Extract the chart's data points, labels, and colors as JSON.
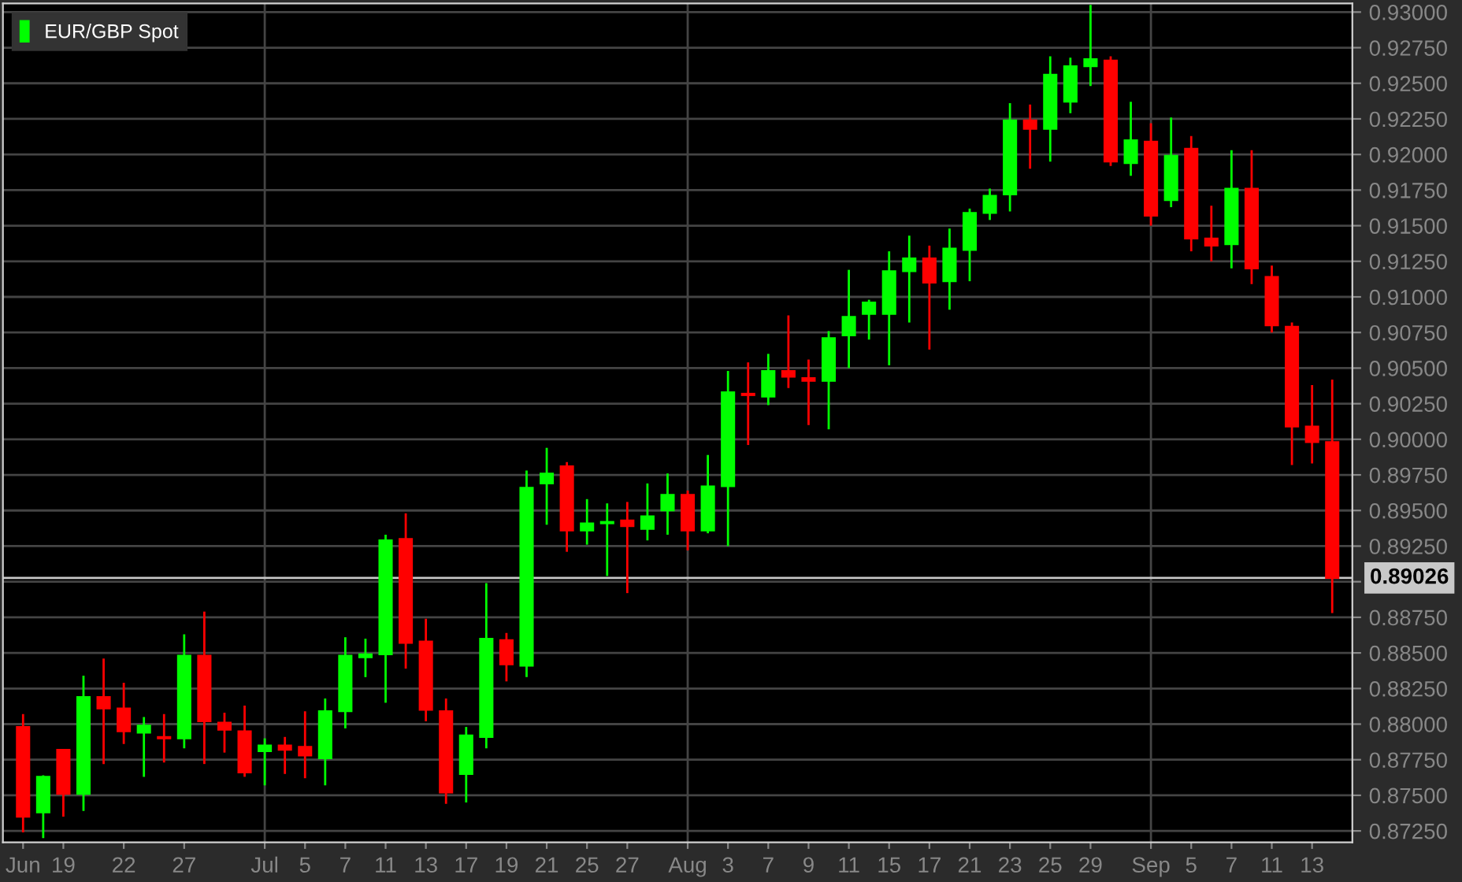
{
  "chart_data": {
    "type": "candlestick",
    "categories": [
      "Jun",
      null,
      "19",
      null,
      null,
      "22",
      null,
      null,
      "27",
      null,
      null,
      null,
      "Jul",
      null,
      "5",
      null,
      "7",
      null,
      "11",
      null,
      "13",
      null,
      "17",
      null,
      "19",
      null,
      "21",
      null,
      "25",
      null,
      "27",
      null,
      null,
      "Aug",
      null,
      "3",
      null,
      "7",
      null,
      "9",
      null,
      "11",
      null,
      "15",
      null,
      "17",
      null,
      "21",
      null,
      "23",
      null,
      "25",
      null,
      "29",
      null,
      null,
      "Sep",
      null,
      "5",
      null,
      "7",
      null,
      "11",
      null,
      "13",
      null
    ],
    "series": [
      {
        "name": "EUR/GBP Spot",
        "color": "#00ff00",
        "colors": [
          "#ff0000",
          "#00ff00",
          "#ff0000",
          "#00ff00",
          "#ff0000",
          "#ff0000",
          "#00ff00",
          "#ff0000",
          "#00ff00",
          "#ff0000",
          "#ff0000",
          "#ff0000",
          "#00ff00",
          "#ff0000",
          "#ff0000",
          "#00ff00",
          "#00ff00",
          "#00ff00",
          "#00ff00",
          "#ff0000",
          "#ff0000",
          "#ff0000",
          "#00ff00",
          "#00ff00",
          "#ff0000",
          "#00ff00",
          "#00ff00",
          "#ff0000",
          "#00ff00",
          "#00ff00",
          "#ff0000",
          "#00ff00",
          "#00ff00",
          "#ff0000",
          "#00ff00",
          "#00ff00",
          "#ff0000",
          "#00ff00",
          "#ff0000",
          "#ff0000",
          "#00ff00",
          "#00ff00",
          "#00ff00",
          "#00ff00",
          "#00ff00",
          "#ff0000",
          "#00ff00",
          "#00ff00",
          "#00ff00",
          "#00ff00",
          "#ff0000",
          "#00ff00",
          "#00ff00",
          "#00ff00",
          "#ff0000",
          "#00ff00",
          "#ff0000",
          "#00ff00",
          "#ff0000",
          "#ff0000",
          "#00ff00",
          "#ff0000",
          "#ff0000",
          "#ff0000",
          "#ff0000",
          "#ff0000"
        ],
        "ohlc": [
          [
            0.8798,
            0.8807,
            0.8724,
            0.8735
          ],
          [
            0.8738,
            0.8764,
            0.872,
            0.8763
          ],
          [
            0.8782,
            0.8782,
            0.8735,
            0.8751
          ],
          [
            0.8751,
            0.8834,
            0.8739,
            0.8819
          ],
          [
            0.8819,
            0.8846,
            0.8772,
            0.8811
          ],
          [
            0.8811,
            0.8829,
            0.8786,
            0.8795
          ],
          [
            0.8794,
            0.8805,
            0.8763,
            0.8799
          ],
          [
            0.8791,
            0.8807,
            0.8773,
            0.879
          ],
          [
            0.879,
            0.8863,
            0.8783,
            0.8848
          ],
          [
            0.8848,
            0.8879,
            0.8772,
            0.8802
          ],
          [
            0.8801,
            0.8808,
            0.878,
            0.8796
          ],
          [
            0.8795,
            0.8813,
            0.8763,
            0.8766
          ],
          [
            0.8781,
            0.879,
            0.8757,
            0.8785
          ],
          [
            0.8785,
            0.8791,
            0.8765,
            0.8782
          ],
          [
            0.8784,
            0.8809,
            0.8762,
            0.8778
          ],
          [
            0.8776,
            0.8818,
            0.8757,
            0.8809
          ],
          [
            0.8809,
            0.8861,
            0.8797,
            0.8848
          ],
          [
            0.8847,
            0.886,
            0.8833,
            0.8849
          ],
          [
            0.8849,
            0.8933,
            0.8815,
            0.8929
          ],
          [
            0.893,
            0.8948,
            0.8839,
            0.8857
          ],
          [
            0.8858,
            0.8874,
            0.8802,
            0.881
          ],
          [
            0.8809,
            0.8818,
            0.8744,
            0.8752
          ],
          [
            0.8765,
            0.8798,
            0.8745,
            0.8792
          ],
          [
            0.8791,
            0.8899,
            0.8783,
            0.886
          ],
          [
            0.8859,
            0.8864,
            0.883,
            0.8842
          ],
          [
            0.8841,
            0.8978,
            0.8833,
            0.8966
          ],
          [
            0.8969,
            0.8994,
            0.894,
            0.8976
          ],
          [
            0.8981,
            0.8984,
            0.8921,
            0.8936
          ],
          [
            0.8936,
            0.8958,
            0.8926,
            0.8941
          ],
          [
            0.8941,
            0.8955,
            0.8904,
            0.8942
          ],
          [
            0.8943,
            0.8956,
            0.8892,
            0.8939
          ],
          [
            0.8937,
            0.8969,
            0.8929,
            0.8946
          ],
          [
            0.895,
            0.8976,
            0.8933,
            0.8961
          ],
          [
            0.8961,
            0.8964,
            0.8922,
            0.8936
          ],
          [
            0.8936,
            0.8989,
            0.8934,
            0.8967
          ],
          [
            0.8967,
            0.9048,
            0.8925,
            0.9033
          ],
          [
            0.9032,
            0.9054,
            0.8996,
            0.9031
          ],
          [
            0.903,
            0.906,
            0.9024,
            0.9048
          ],
          [
            0.9048,
            0.9087,
            0.9036,
            0.9044
          ],
          [
            0.9043,
            0.9056,
            0.901,
            0.9041
          ],
          [
            0.9041,
            0.9076,
            0.9007,
            0.9071
          ],
          [
            0.9073,
            0.9119,
            0.905,
            0.9086
          ],
          [
            0.9088,
            0.9098,
            0.907,
            0.9096
          ],
          [
            0.9088,
            0.9132,
            0.9052,
            0.9118
          ],
          [
            0.9118,
            0.9143,
            0.9082,
            0.9127
          ],
          [
            0.9127,
            0.9136,
            0.9063,
            0.911
          ],
          [
            0.9111,
            0.9148,
            0.9091,
            0.9134
          ],
          [
            0.9133,
            0.9162,
            0.9111,
            0.9159
          ],
          [
            0.9159,
            0.9176,
            0.9154,
            0.9171
          ],
          [
            0.9172,
            0.9236,
            0.916,
            0.9224
          ],
          [
            0.9224,
            0.9235,
            0.919,
            0.9218
          ],
          [
            0.9218,
            0.9269,
            0.9195,
            0.9256
          ],
          [
            0.9237,
            0.9268,
            0.9229,
            0.9262
          ],
          [
            0.9262,
            0.9305,
            0.9248,
            0.9267
          ],
          [
            0.9266,
            0.9269,
            0.9192,
            0.9195
          ],
          [
            0.9194,
            0.9237,
            0.9185,
            0.921
          ],
          [
            0.9209,
            0.9222,
            0.915,
            0.9157
          ],
          [
            0.9168,
            0.9226,
            0.9163,
            0.9199
          ],
          [
            0.9204,
            0.9213,
            0.9132,
            0.9141
          ],
          [
            0.9141,
            0.9164,
            0.9125,
            0.9136
          ],
          [
            0.9137,
            0.9203,
            0.912,
            0.9176
          ],
          [
            0.9176,
            0.9203,
            0.9109,
            0.912
          ],
          [
            0.9114,
            0.9122,
            0.9075,
            0.908
          ],
          [
            0.9079,
            0.9082,
            0.8982,
            0.9009
          ],
          [
            0.9009,
            0.9038,
            0.8983,
            0.8998
          ],
          [
            0.8998,
            0.9042,
            0.8878,
            0.89026
          ]
        ]
      }
    ],
    "ylim": [
      0.8717,
      0.9306
    ],
    "yticks": [
      {
        "value": 0.8725,
        "label": "0.87250"
      },
      {
        "value": 0.875,
        "label": "0.87500"
      },
      {
        "value": 0.8775,
        "label": "0.87750"
      },
      {
        "value": 0.88,
        "label": "0.88000"
      },
      {
        "value": 0.8825,
        "label": "0.88250"
      },
      {
        "value": 0.885,
        "label": "0.88500"
      },
      {
        "value": 0.8875,
        "label": "0.88750"
      },
      {
        "value": 0.89,
        "label": null
      },
      {
        "value": 0.8925,
        "label": "0.89250"
      },
      {
        "value": 0.895,
        "label": "0.89500"
      },
      {
        "value": 0.8975,
        "label": "0.89750"
      },
      {
        "value": 0.9,
        "label": "0.90000"
      },
      {
        "value": 0.9025,
        "label": "0.90250"
      },
      {
        "value": 0.905,
        "label": "0.90500"
      },
      {
        "value": 0.9075,
        "label": "0.90750"
      },
      {
        "value": 0.91,
        "label": "0.91000"
      },
      {
        "value": 0.9125,
        "label": "0.91250"
      },
      {
        "value": 0.915,
        "label": "0.91500"
      },
      {
        "value": 0.9175,
        "label": "0.91750"
      },
      {
        "value": 0.92,
        "label": "0.92000"
      },
      {
        "value": 0.9225,
        "label": "0.92250"
      },
      {
        "value": 0.925,
        "label": "0.92500"
      },
      {
        "value": 0.9275,
        "label": "0.92750"
      },
      {
        "value": 0.93,
        "label": "0.93000"
      }
    ],
    "grid": "y",
    "legend": "top left",
    "ref_lines": [
      {
        "axis": "y",
        "value": 0.89026,
        "label": "0.89026",
        "color": "#c8c8c8"
      },
      {
        "axis": "x",
        "value": "Jul",
        "color": "#444444"
      },
      {
        "axis": "x",
        "value": "Aug",
        "color": "#444444"
      },
      {
        "axis": "x",
        "value": "Sep",
        "color": "#444444"
      }
    ]
  }
}
